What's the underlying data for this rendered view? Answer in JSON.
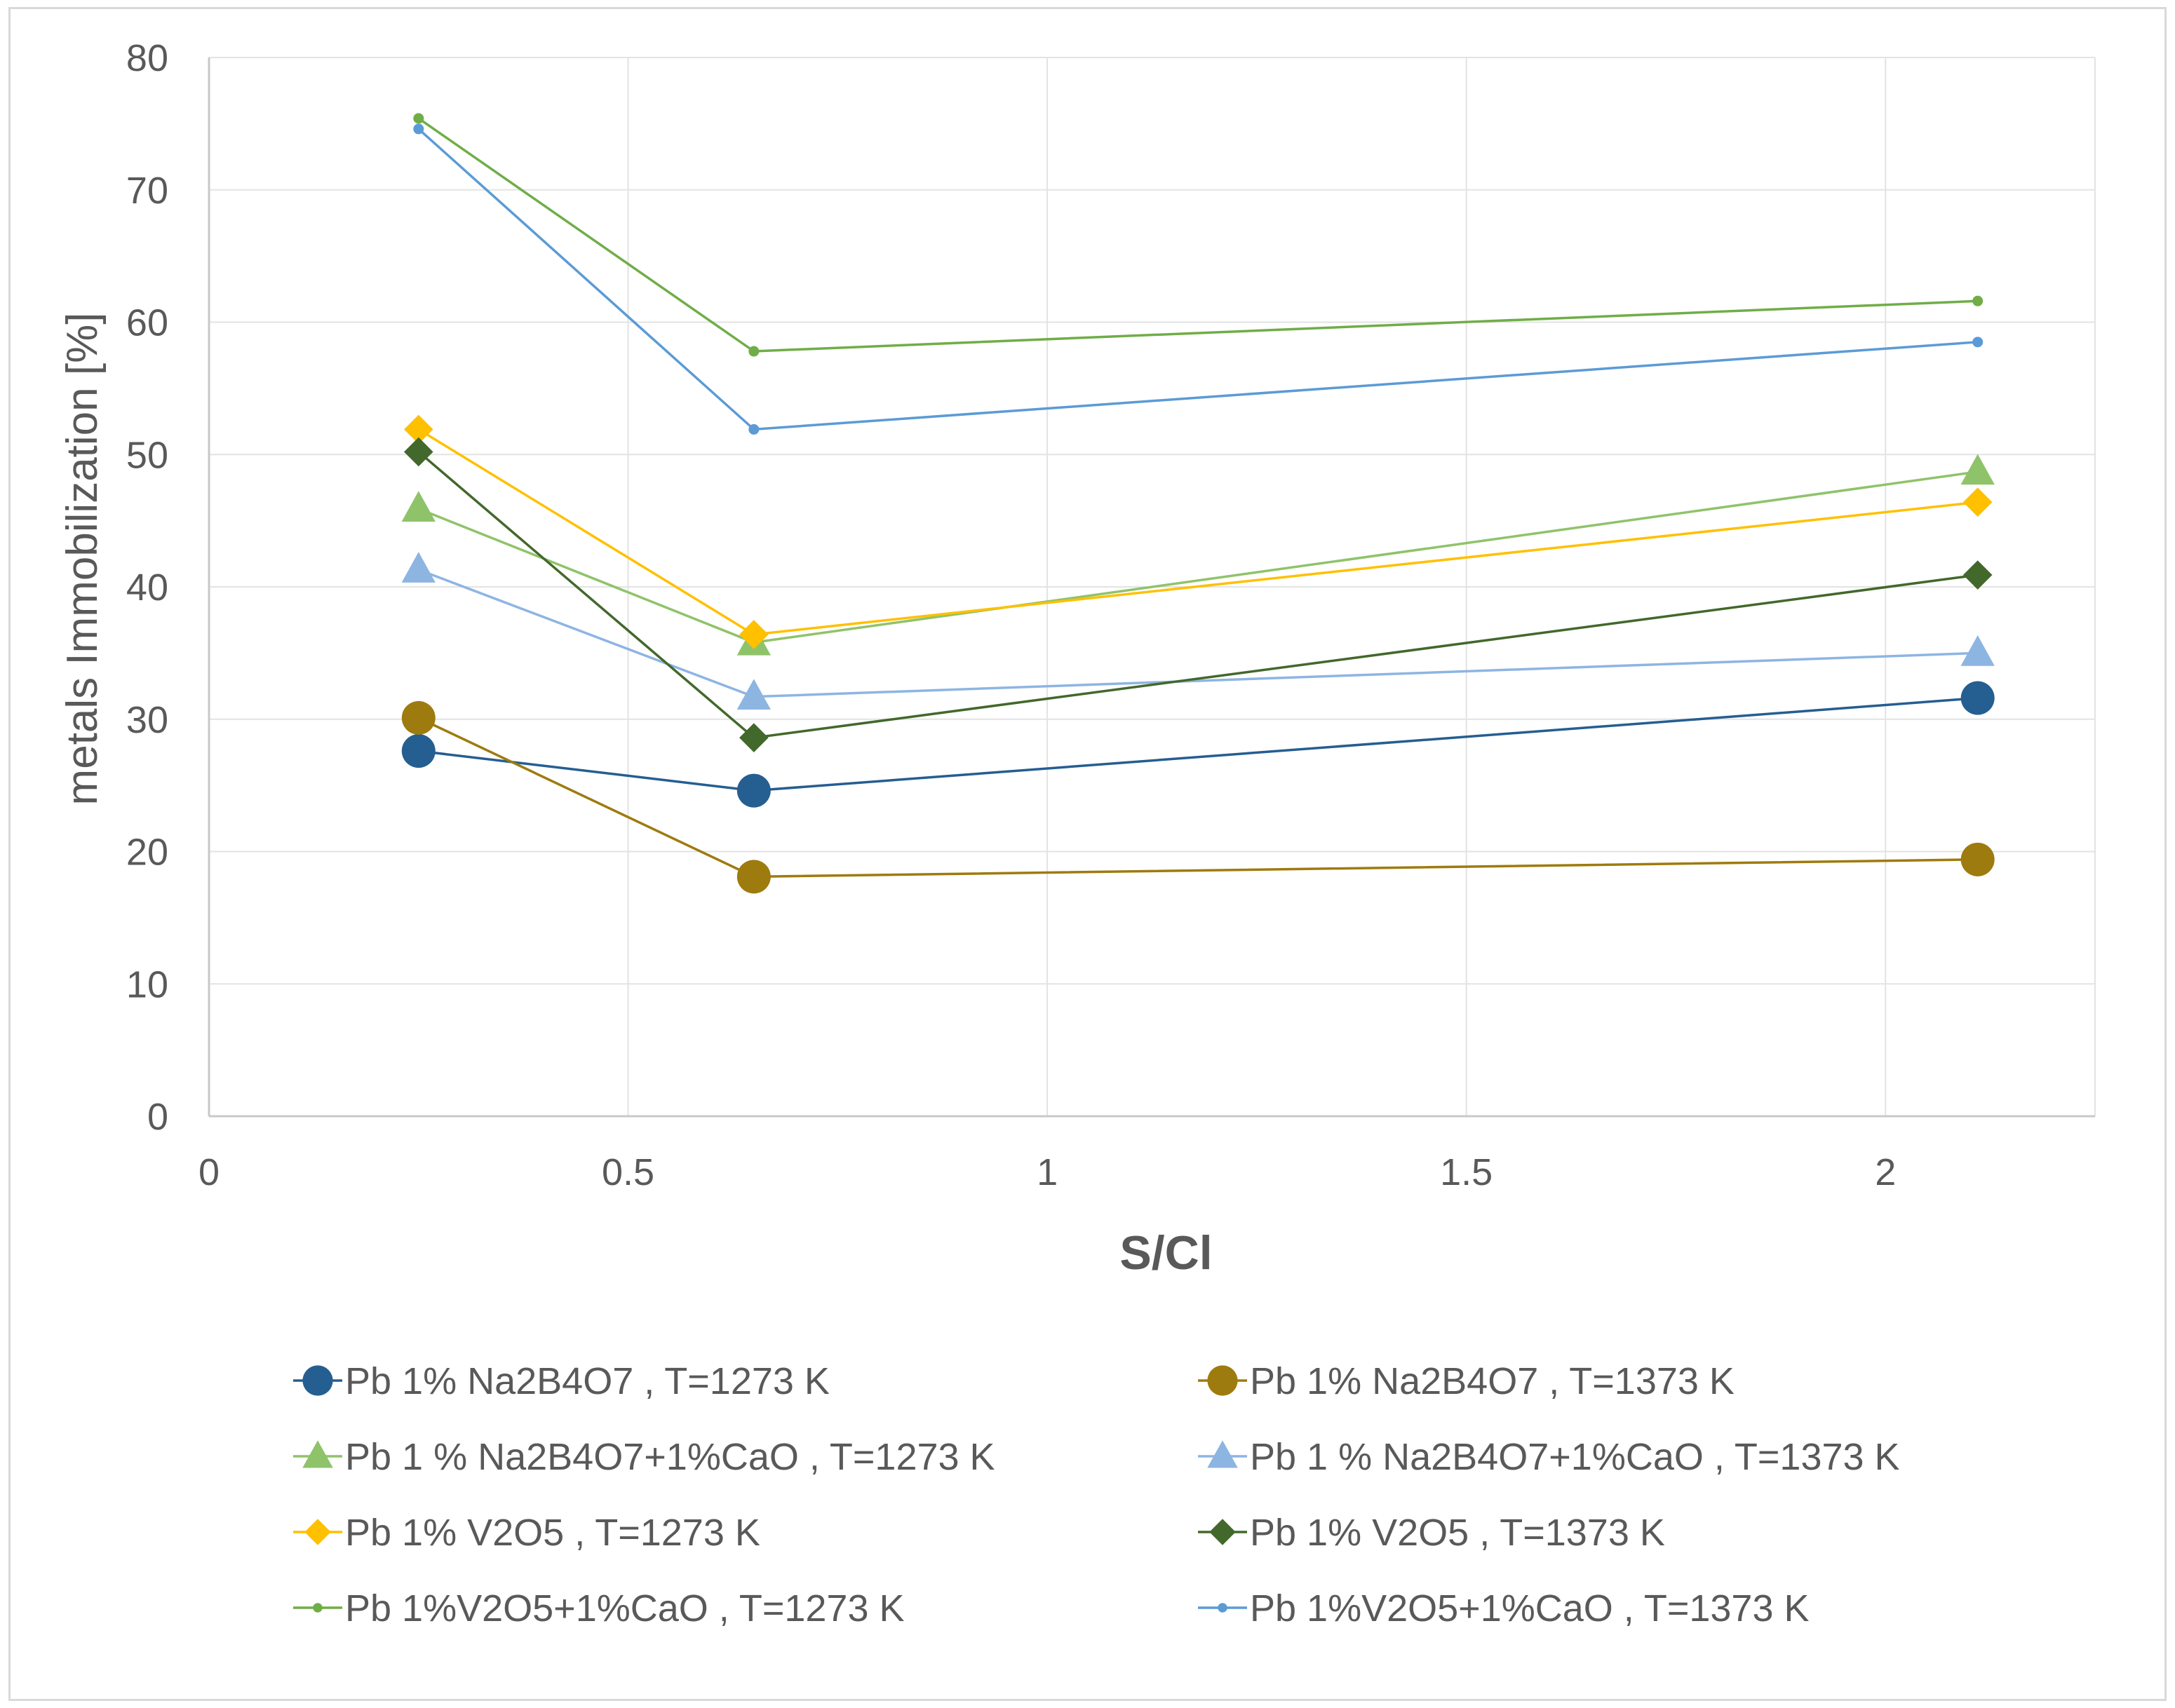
{
  "chart_data": {
    "type": "line",
    "title": "",
    "xlabel": "S/Cl",
    "ylabel": "metals Immobilization [%]",
    "xlim": [
      0,
      2.25
    ],
    "ylim": [
      0,
      80
    ],
    "x_ticks": [
      0,
      0.5,
      1,
      1.5,
      2
    ],
    "x_tick_labels": [
      "0",
      "0.5",
      "1",
      "1.5",
      "2"
    ],
    "y_ticks": [
      0,
      10,
      20,
      30,
      40,
      50,
      60,
      70,
      80
    ],
    "y_tick_labels": [
      "0",
      "10",
      "20",
      "30",
      "40",
      "50",
      "60",
      "70",
      "80"
    ],
    "grid": true,
    "legend_position": "bottom",
    "x": [
      0.25,
      0.65,
      2.11
    ],
    "series": [
      {
        "name": "Pb 1% Na2B4O7 , T=1273 K",
        "marker": "circle",
        "color": "#255e91",
        "values": [
          27.6,
          24.6,
          31.6
        ]
      },
      {
        "name": "Pb 1% Na2B4O7 , T=1373 K",
        "marker": "circle",
        "color": "#9e7b0e",
        "values": [
          30.1,
          18.1,
          19.4
        ]
      },
      {
        "name": "Pb 1 % Na2B4O7+1%CaO , T=1273 K",
        "marker": "triangle",
        "color": "#8fc36a",
        "values": [
          45.9,
          35.8,
          48.7
        ]
      },
      {
        "name": "Pb 1 % Na2B4O7+1%CaO , T=1373 K",
        "marker": "triangle",
        "color": "#8db5e2",
        "values": [
          41.3,
          31.7,
          35.0
        ]
      },
      {
        "name": "Pb 1% V2O5 , T=1273 K",
        "marker": "diamond",
        "color": "#ffc000",
        "values": [
          51.9,
          36.4,
          46.4
        ]
      },
      {
        "name": "Pb 1% V2O5 , T=1373 K",
        "marker": "diamond",
        "color": "#43682b",
        "values": [
          50.2,
          28.6,
          40.9
        ]
      },
      {
        "name": "Pb 1%V2O5+1%CaO , T=1273 K",
        "marker": "dot",
        "color": "#70ad47",
        "values": [
          75.4,
          57.8,
          61.6
        ]
      },
      {
        "name": "Pb 1%V2O5+1%CaO , T=1373 K",
        "marker": "dot",
        "color": "#5b9bd5",
        "values": [
          74.6,
          51.9,
          58.5
        ]
      }
    ]
  }
}
